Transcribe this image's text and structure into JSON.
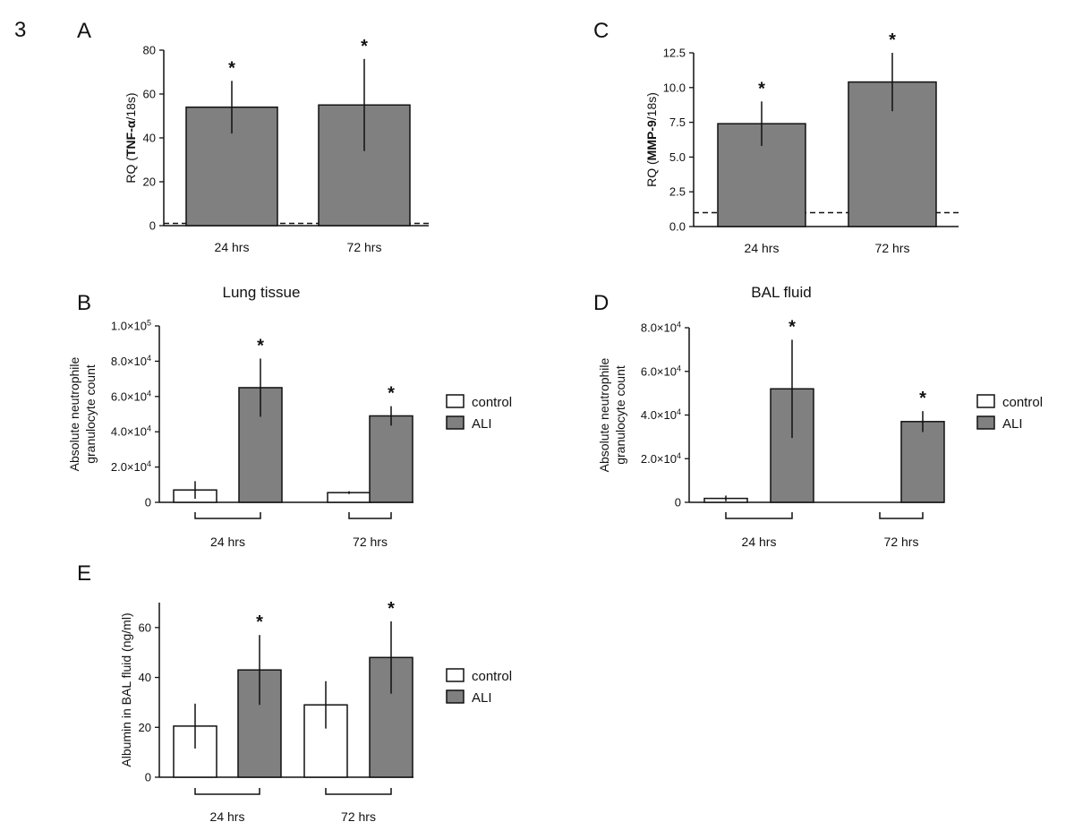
{
  "figure_label": "3",
  "colors": {
    "control": "#ffffff",
    "ALI": "#808080",
    "stroke": "#111111"
  },
  "chart_data": [
    {
      "panel": "A",
      "type": "bar",
      "title": "",
      "ylabel_parts": [
        [
          "RQ (",
          false
        ],
        [
          "TNF-α",
          true
        ],
        [
          "/18s)",
          false
        ]
      ],
      "categories": [
        "24 hrs",
        "72 hrs"
      ],
      "series": [
        {
          "name": "ALI",
          "values": [
            54,
            55
          ],
          "errors": [
            12,
            21
          ]
        }
      ],
      "significance": [
        "*",
        "*"
      ],
      "ylim": [
        0,
        80
      ],
      "yticks": [
        0,
        20,
        40,
        60,
        80
      ],
      "ytick_labels": [
        "0",
        "20",
        "40",
        "60",
        "80"
      ],
      "reference_line": 1,
      "bracketed": false,
      "legend": []
    },
    {
      "panel": "C",
      "type": "bar",
      "title": "",
      "ylabel_parts": [
        [
          "RQ (",
          false
        ],
        [
          "MMP-9",
          true
        ],
        [
          "/18s)",
          false
        ]
      ],
      "categories": [
        "24 hrs",
        "72 hrs"
      ],
      "series": [
        {
          "name": "ALI",
          "values": [
            7.4,
            10.4
          ],
          "errors": [
            1.6,
            2.1
          ]
        }
      ],
      "significance": [
        "*",
        "*"
      ],
      "ylim": [
        0,
        12.5
      ],
      "yticks": [
        0,
        2.5,
        5,
        7.5,
        10,
        12.5
      ],
      "ytick_labels": [
        "0.0",
        "2.5",
        "5.0",
        "7.5",
        "10.0",
        "12.5"
      ],
      "reference_line": 1,
      "bracketed": false,
      "legend": []
    },
    {
      "panel": "B",
      "type": "bar",
      "title": "Lung tissue",
      "ylabel_lines": [
        "Absolute neutrophile",
        "granulocyte count"
      ],
      "categories": [
        "24 hrs",
        "72 hrs"
      ],
      "series": [
        {
          "name": "control",
          "values": [
            7000,
            5500
          ],
          "errors": [
            5000,
            800
          ]
        },
        {
          "name": "ALI",
          "values": [
            65000,
            49000
          ],
          "errors": [
            16500,
            5500
          ]
        }
      ],
      "significance": [
        "*",
        "*"
      ],
      "ylim": [
        0,
        100000
      ],
      "yticks": [
        0,
        20000,
        40000,
        60000,
        80000,
        100000
      ],
      "ytick_labels": [
        [
          "0",
          ""
        ],
        [
          "2.0×10",
          "4"
        ],
        [
          "4.0×10",
          "4"
        ],
        [
          "6.0×10",
          "4"
        ],
        [
          "8.0×10",
          "4"
        ],
        [
          "1.0×10",
          "5"
        ]
      ],
      "bracketed": true,
      "legend": [
        "control",
        "ALI"
      ]
    },
    {
      "panel": "D",
      "type": "bar",
      "title": "BAL fluid",
      "ylabel_lines": [
        "Absolute neutrophile",
        "granulocyte count"
      ],
      "categories": [
        "24 hrs",
        "72 hrs"
      ],
      "series": [
        {
          "name": "control",
          "values": [
            1800,
            0
          ],
          "errors": [
            1300,
            0
          ]
        },
        {
          "name": "ALI",
          "values": [
            52000,
            37000
          ],
          "errors": [
            22500,
            4800
          ]
        }
      ],
      "significance": [
        "*",
        "*"
      ],
      "ylim": [
        0,
        80000
      ],
      "yticks": [
        0,
        20000,
        40000,
        60000,
        80000
      ],
      "ytick_labels": [
        [
          "0",
          ""
        ],
        [
          "2.0×10",
          "4"
        ],
        [
          "4.0×10",
          "4"
        ],
        [
          "6.0×10",
          "4"
        ],
        [
          "8.0×10",
          "4"
        ]
      ],
      "bracketed": true,
      "legend": [
        "control",
        "ALI"
      ]
    },
    {
      "panel": "E",
      "type": "bar",
      "title": "",
      "ylabel_lines": [
        "Albumin in BAL fluid (ng/ml)"
      ],
      "categories": [
        "24 hrs",
        "72 hrs"
      ],
      "series": [
        {
          "name": "control",
          "values": [
            20.5,
            29
          ],
          "errors": [
            9,
            9.5
          ]
        },
        {
          "name": "ALI",
          "values": [
            43,
            48
          ],
          "errors": [
            14,
            14.5
          ]
        }
      ],
      "significance": [
        "*",
        "*"
      ],
      "ylim": [
        0,
        70
      ],
      "yticks": [
        0,
        20,
        40,
        60
      ],
      "ytick_labels": [
        "0",
        "20",
        "40",
        "60"
      ],
      "bracketed": true,
      "legend": [
        "control",
        "ALI"
      ]
    }
  ]
}
